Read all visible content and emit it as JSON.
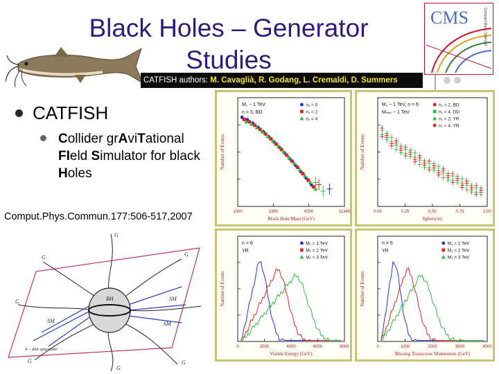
{
  "title": {
    "line1": "Black Holes – Generator",
    "line2": "Studies"
  },
  "authors": {
    "key": "CATFISH authors:",
    "names": "M. Cavaglià, R. Godang, L. Cremaldi, D. Summers"
  },
  "logo": {
    "cms": "CMS",
    "sub": "Compact Muon Solenoid"
  },
  "bullets": {
    "level1": "CATFISH",
    "level2_parts": [
      {
        "t": "C",
        "b": true
      },
      {
        "t": "ollider ",
        "b": false
      },
      {
        "t": "gr",
        "b": false
      },
      {
        "t": "A",
        "b": true
      },
      {
        "t": "vi",
        "b": false
      },
      {
        "t": "T",
        "b": true
      },
      {
        "t": "ational ",
        "b": false
      },
      {
        "t": "FI",
        "b": true
      },
      {
        "t": "eld ",
        "b": false
      },
      {
        "t": "S",
        "b": true
      },
      {
        "t": "imulator for black ",
        "b": false
      },
      {
        "t": "H",
        "b": true
      },
      {
        "t": "oles",
        "b": false
      }
    ]
  },
  "reference": "Comput.Phys.Commun.177:506-517,2007",
  "colors": {
    "title": "#2b1d78",
    "frame": "#c9c36f",
    "blue": "#1f2fd6",
    "red": "#e0241c",
    "green": "#2dbb3a"
  },
  "chart_data": [
    {
      "type": "scatter",
      "xlabel": "Black Hole Mass (GeV)",
      "ylabel": "Number of Events",
      "info": [
        "M₁ ~ 1 TeV",
        "n = 3, BD"
      ],
      "series": [
        {
          "name": "n₁ = 0"
        },
        {
          "name": "n₁ = 2"
        },
        {
          "name": "n₁ = 4"
        }
      ],
      "x_ticks": [
        "1000",
        "3360",
        "6000",
        "11340"
      ]
    },
    {
      "type": "scatter",
      "xlabel": "Sphericity",
      "ylabel": "Number of Events",
      "info": [
        "M₁ ~ 1 TeV, n = 6",
        "Mₘᵢₙ ~ 1 TeV"
      ],
      "series": [
        {
          "name": "n₁ = 2, BD"
        },
        {
          "name": "n₁ = 4, DD"
        },
        {
          "name": "n₁ = 2, YR"
        },
        {
          "name": "n₁ = 4, YR"
        }
      ],
      "x_ticks": [
        "0.00",
        "0.25",
        "0.50",
        "0.75",
        "1.00"
      ]
    },
    {
      "type": "line",
      "xlabel": "Visible Energy (GeV)",
      "ylabel": "Number of Events",
      "info": [
        "n = 6",
        "YR"
      ],
      "series": [
        {
          "name": "M₁ = 1 TeV"
        },
        {
          "name": "M₁ = 2 TeV"
        },
        {
          "name": "M₁ = 3 TeV"
        }
      ],
      "x_ticks": [
        "0",
        "2000",
        "4000",
        "6000",
        "8000"
      ]
    },
    {
      "type": "line",
      "xlabel": "Missing Transverse Momentum (GeV)",
      "ylabel": "Number of Events",
      "info": [
        "n = 6",
        "YR"
      ],
      "series": [
        {
          "name": "M₁ = 1 TeV"
        },
        {
          "name": "M₁ = 2 TeV"
        },
        {
          "name": "M₁ = 3 TeV"
        }
      ],
      "x_ticks": [
        "0",
        "1000",
        "2000",
        "3000",
        "4000"
      ]
    }
  ],
  "diagram": {
    "labels": [
      "G",
      "G",
      "G",
      "G",
      "SM",
      "SM",
      "SM",
      "G",
      "G",
      "G",
      "BH",
      "4 – dim spacetime"
    ]
  }
}
